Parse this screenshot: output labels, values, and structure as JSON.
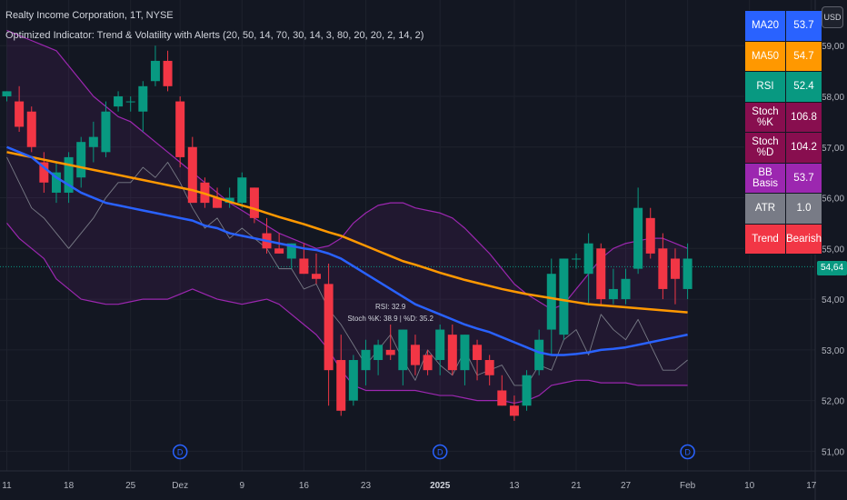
{
  "header": {
    "symbol_line": "Realty Income Corporation, 1T, NYSE",
    "indicator_line": "Optimized Indicator: Trend & Volatility with Alerts (20, 50, 14, 70, 30, 14, 3, 80, 20, 20, 2, 14, 2)"
  },
  "currency_button": "USD",
  "last_price_label": "54,64",
  "colors": {
    "up": "#089981",
    "down": "#f23645",
    "ma20": "#2962ff",
    "ma50": "#ff9800",
    "band": "#9c27b0",
    "gray_line": "#787b86",
    "background": "#131722"
  },
  "stats_table": [
    {
      "label": "MA20",
      "value": "53.7",
      "bg": "#2962ff",
      "vbg": "#2962ff"
    },
    {
      "label": "MA50",
      "value": "54.7",
      "bg": "#ff9800",
      "vbg": "#ff9800"
    },
    {
      "label": "RSI",
      "value": "52.4",
      "bg": "#089981",
      "vbg": "#089981"
    },
    {
      "label": "Stoch %K",
      "value": "106.8",
      "bg": "#880e4f",
      "vbg": "#880e4f"
    },
    {
      "label": "Stoch %D",
      "value": "104.2",
      "bg": "#880e4f",
      "vbg": "#880e4f"
    },
    {
      "label": "BB Basis",
      "value": "53.7",
      "bg": "#9c27b0",
      "vbg": "#9c27b0"
    },
    {
      "label": "ATR",
      "value": "1.0",
      "bg": "#787b86",
      "vbg": "#787b86"
    },
    {
      "label": "Trend",
      "value": "Bearish",
      "bg": "#f23645",
      "vbg": "#f23645"
    }
  ],
  "chart_data": {
    "type": "candlestick",
    "ylim": [
      50.9,
      59.9
    ],
    "y_ticks": [
      {
        "v": 51,
        "label": "51,00"
      },
      {
        "v": 52,
        "label": "52,00"
      },
      {
        "v": 53,
        "label": "53,00"
      },
      {
        "v": 54,
        "label": "54,00"
      },
      {
        "v": 55,
        "label": "55,00"
      },
      {
        "v": 56,
        "label": "56,00"
      },
      {
        "v": 57,
        "label": "57,00"
      },
      {
        "v": 58,
        "label": "58,00"
      },
      {
        "v": 59,
        "label": "59,00"
      }
    ],
    "x_ticks": [
      {
        "i": 0,
        "label": "11"
      },
      {
        "i": 5,
        "label": "18"
      },
      {
        "i": 10,
        "label": "25"
      },
      {
        "i": 14,
        "label": "Dez"
      },
      {
        "i": 19,
        "label": "9"
      },
      {
        "i": 24,
        "label": "16"
      },
      {
        "i": 29,
        "label": "23"
      },
      {
        "i": 35,
        "label": "2025",
        "bold": true
      },
      {
        "i": 41,
        "label": "13"
      },
      {
        "i": 46,
        "label": "21"
      },
      {
        "i": 50,
        "label": "27"
      },
      {
        "i": 55,
        "label": "Feb"
      },
      {
        "i": 60,
        "label": "10"
      },
      {
        "i": 65,
        "label": "17"
      }
    ],
    "candles": [
      {
        "o": 58.0,
        "h": 58.1,
        "l": 57.9,
        "c": 58.1
      },
      {
        "o": 57.9,
        "h": 58.2,
        "l": 57.3,
        "c": 57.4
      },
      {
        "o": 57.7,
        "h": 57.8,
        "l": 56.9,
        "c": 57.0
      },
      {
        "o": 56.7,
        "h": 56.9,
        "l": 56.1,
        "c": 56.3
      },
      {
        "o": 56.1,
        "h": 56.7,
        "l": 55.9,
        "c": 56.5
      },
      {
        "o": 56.1,
        "h": 56.9,
        "l": 55.9,
        "c": 56.8
      },
      {
        "o": 56.4,
        "h": 57.2,
        "l": 56.2,
        "c": 57.1
      },
      {
        "o": 57.0,
        "h": 57.5,
        "l": 56.7,
        "c": 57.2
      },
      {
        "o": 56.9,
        "h": 57.9,
        "l": 56.8,
        "c": 57.7
      },
      {
        "o": 57.8,
        "h": 58.1,
        "l": 57.7,
        "c": 58.0
      },
      {
        "o": 57.9,
        "h": 58.0,
        "l": 57.7,
        "c": 57.9
      },
      {
        "o": 57.7,
        "h": 58.3,
        "l": 57.3,
        "c": 58.2
      },
      {
        "o": 58.3,
        "h": 59.0,
        "l": 58.2,
        "c": 58.7
      },
      {
        "o": 58.7,
        "h": 58.9,
        "l": 58.1,
        "c": 58.2
      },
      {
        "o": 57.9,
        "h": 58.0,
        "l": 56.6,
        "c": 56.8
      },
      {
        "o": 57.0,
        "h": 57.2,
        "l": 55.9,
        "c": 55.9
      },
      {
        "o": 56.3,
        "h": 56.4,
        "l": 55.8,
        "c": 55.9
      },
      {
        "o": 56.0,
        "h": 56.2,
        "l": 55.8,
        "c": 55.8
      },
      {
        "o": 55.9,
        "h": 56.2,
        "l": 55.8,
        "c": 56.0
      },
      {
        "o": 55.9,
        "h": 56.5,
        "l": 55.8,
        "c": 56.4
      },
      {
        "o": 56.2,
        "h": 56.2,
        "l": 55.5,
        "c": 55.6
      },
      {
        "o": 55.3,
        "h": 55.6,
        "l": 54.9,
        "c": 55.0
      },
      {
        "o": 55.0,
        "h": 55.3,
        "l": 54.9,
        "c": 54.9
      },
      {
        "o": 54.8,
        "h": 55.1,
        "l": 54.6,
        "c": 55.1
      },
      {
        "o": 54.8,
        "h": 55.1,
        "l": 54.5,
        "c": 54.5
      },
      {
        "o": 54.5,
        "h": 54.9,
        "l": 54.3,
        "c": 54.4
      },
      {
        "o": 54.3,
        "h": 54.7,
        "l": 51.9,
        "c": 52.6
      },
      {
        "o": 52.8,
        "h": 53.3,
        "l": 51.7,
        "c": 51.8
      },
      {
        "o": 52.0,
        "h": 52.9,
        "l": 51.9,
        "c": 52.8
      },
      {
        "o": 52.6,
        "h": 53.2,
        "l": 52.3,
        "c": 53.0
      },
      {
        "o": 52.8,
        "h": 53.2,
        "l": 52.5,
        "c": 53.1
      },
      {
        "o": 53.0,
        "h": 53.5,
        "l": 52.8,
        "c": 52.9
      },
      {
        "o": 52.6,
        "h": 53.4,
        "l": 52.3,
        "c": 53.4
      },
      {
        "o": 53.1,
        "h": 53.3,
        "l": 52.5,
        "c": 52.7
      },
      {
        "o": 52.9,
        "h": 53.0,
        "l": 52.5,
        "c": 52.6
      },
      {
        "o": 52.8,
        "h": 53.5,
        "l": 52.5,
        "c": 53.4
      },
      {
        "o": 53.3,
        "h": 53.5,
        "l": 52.5,
        "c": 52.6
      },
      {
        "o": 52.6,
        "h": 53.3,
        "l": 52.3,
        "c": 53.3
      },
      {
        "o": 53.1,
        "h": 53.2,
        "l": 52.4,
        "c": 52.8
      },
      {
        "o": 52.8,
        "h": 52.9,
        "l": 52.3,
        "c": 52.5
      },
      {
        "o": 52.2,
        "h": 52.5,
        "l": 51.9,
        "c": 51.9
      },
      {
        "o": 51.9,
        "h": 52.1,
        "l": 51.6,
        "c": 51.7
      },
      {
        "o": 51.9,
        "h": 52.6,
        "l": 51.8,
        "c": 52.5
      },
      {
        "o": 52.6,
        "h": 53.4,
        "l": 52.5,
        "c": 53.2
      },
      {
        "o": 53.4,
        "h": 54.8,
        "l": 52.9,
        "c": 54.5
      },
      {
        "o": 53.3,
        "h": 54.8,
        "l": 53.2,
        "c": 54.8
      },
      {
        "o": 54.8,
        "h": 54.9,
        "l": 54.6,
        "c": 54.8
      },
      {
        "o": 54.5,
        "h": 55.3,
        "l": 53.9,
        "c": 55.1
      },
      {
        "o": 55.0,
        "h": 55.1,
        "l": 53.9,
        "c": 54.0
      },
      {
        "o": 54.0,
        "h": 54.6,
        "l": 53.9,
        "c": 54.2
      },
      {
        "o": 54.0,
        "h": 54.6,
        "l": 53.9,
        "c": 54.4
      },
      {
        "o": 54.6,
        "h": 56.2,
        "l": 54.5,
        "c": 55.8
      },
      {
        "o": 55.6,
        "h": 55.8,
        "l": 54.8,
        "c": 54.9
      },
      {
        "o": 55.0,
        "h": 55.3,
        "l": 54.0,
        "c": 54.2
      },
      {
        "o": 54.8,
        "h": 55.0,
        "l": 53.9,
        "c": 54.4
      },
      {
        "o": 54.2,
        "h": 55.1,
        "l": 54.0,
        "c": 54.8
      }
    ],
    "ma20": [
      57.0,
      56.9,
      56.8,
      56.6,
      56.4,
      56.25,
      56.1,
      56.0,
      55.9,
      55.85,
      55.8,
      55.75,
      55.7,
      55.65,
      55.6,
      55.55,
      55.45,
      55.4,
      55.3,
      55.25,
      55.2,
      55.15,
      55.1,
      55.05,
      55.0,
      54.97,
      54.9,
      54.8,
      54.65,
      54.5,
      54.35,
      54.2,
      54.05,
      53.9,
      53.8,
      53.7,
      53.6,
      53.5,
      53.42,
      53.35,
      53.25,
      53.15,
      53.05,
      52.95,
      52.9,
      52.9,
      52.92,
      52.95,
      53.0,
      53.02,
      53.05,
      53.1,
      53.15,
      53.2,
      53.25,
      53.3
    ],
    "ma50": [
      56.9,
      56.85,
      56.8,
      56.75,
      56.7,
      56.65,
      56.6,
      56.55,
      56.5,
      56.45,
      56.4,
      56.35,
      56.3,
      56.25,
      56.2,
      56.15,
      56.08,
      56.0,
      55.92,
      55.85,
      55.78,
      55.7,
      55.62,
      55.55,
      55.48,
      55.4,
      55.32,
      55.25,
      55.15,
      55.05,
      54.95,
      54.85,
      54.75,
      54.68,
      54.6,
      54.52,
      54.45,
      54.38,
      54.32,
      54.26,
      54.2,
      54.15,
      54.1,
      54.06,
      54.02,
      53.98,
      53.94,
      53.9,
      53.88,
      53.86,
      53.84,
      53.82,
      53.8,
      53.78,
      53.76,
      53.74
    ],
    "bb_upper": [
      59.3,
      59.2,
      59.1,
      59.0,
      58.9,
      58.6,
      58.3,
      58.0,
      57.8,
      57.6,
      57.5,
      57.3,
      57.1,
      56.9,
      56.7,
      56.5,
      56.3,
      56.1,
      55.9,
      55.75,
      55.6,
      55.45,
      55.3,
      55.2,
      55.1,
      55.0,
      55.05,
      55.2,
      55.5,
      55.7,
      55.85,
      55.9,
      55.9,
      55.8,
      55.75,
      55.7,
      55.6,
      55.4,
      55.15,
      54.9,
      54.6,
      54.3,
      54.1,
      53.95,
      53.8,
      53.9,
      54.2,
      54.5,
      54.8,
      55.0,
      55.1,
      55.15,
      55.2,
      55.2,
      55.1,
      55.0
    ],
    "bb_lower": [
      55.5,
      55.2,
      55.0,
      54.8,
      54.4,
      54.2,
      54.0,
      53.95,
      53.9,
      53.9,
      53.95,
      54.0,
      54.0,
      54.0,
      54.1,
      54.2,
      54.1,
      54.0,
      53.95,
      53.9,
      53.95,
      54.0,
      53.9,
      53.7,
      53.5,
      53.3,
      53.0,
      52.6,
      52.3,
      52.2,
      52.2,
      52.2,
      52.2,
      52.2,
      52.15,
      52.1,
      52.1,
      52.05,
      52.0,
      52.0,
      52.0,
      51.95,
      52.0,
      52.1,
      52.3,
      52.35,
      52.4,
      52.4,
      52.35,
      52.35,
      52.35,
      52.3,
      52.3,
      52.3,
      52.3,
      52.3
    ],
    "gray_line": [
      56.8,
      56.3,
      55.8,
      55.6,
      55.3,
      55.0,
      55.3,
      55.6,
      56.0,
      56.3,
      56.3,
      56.6,
      56.4,
      56.7,
      56.3,
      55.8,
      55.4,
      55.6,
      55.2,
      55.4,
      55.2,
      55.0,
      54.6,
      54.6,
      54.2,
      54.3,
      53.8,
      53.5,
      53.1,
      52.7,
      53.0,
      53.3,
      52.8,
      52.4,
      53.0,
      52.7,
      52.5,
      53.0,
      52.5,
      52.6,
      52.7,
      52.3,
      52.3,
      52.7,
      52.6,
      53.2,
      53.4,
      52.9,
      53.7,
      53.4,
      53.2,
      53.6,
      53.1,
      52.6,
      52.6,
      52.8
    ],
    "event_markers": [
      14,
      35,
      55
    ],
    "event_marker_label": "D",
    "last_price_line": 54.64,
    "annotation": {
      "at_index": 31,
      "price": 53.8,
      "lines": [
        "RSI: 32.9",
        "Stoch %K: 38.9 | %D: 35.2"
      ]
    }
  }
}
